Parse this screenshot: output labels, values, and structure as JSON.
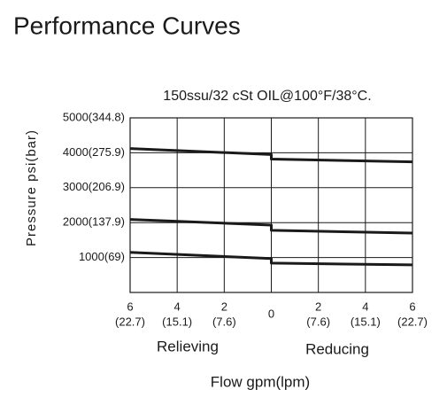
{
  "chart_data": {
    "type": "line",
    "title": "Performance Curves",
    "subtitle": "150ssu/32 cSt OIL@100°F/38°C.",
    "y_label": "Pressure psi(bar)",
    "x_label": "Flow gpm(lpm)",
    "annotations": [
      "Relieving",
      "Reducing"
    ],
    "xlim": [
      -6,
      6
    ],
    "ylim": [
      0,
      5000
    ],
    "xticks": [
      {
        "value": -6,
        "label": "6",
        "label_2": "(22.7)"
      },
      {
        "value": -4,
        "label": "4",
        "label_2": "(15.1)"
      },
      {
        "value": -2,
        "label": "2",
        "label_2": "(7.6)"
      },
      0,
      {
        "value": 2,
        "label": "2",
        "label_2": "(7.6)"
      },
      {
        "value": 4,
        "label": "4",
        "label_2": "(15.1)"
      },
      {
        "value": 6,
        "label": "6",
        "label_2": "(22.7)"
      }
    ],
    "yticks": [
      {
        "value": 1000,
        "label": "1000(69)"
      },
      {
        "value": 2000,
        "label": "2000(137.9)"
      },
      {
        "value": 3000,
        "label": "3000(206.9)"
      },
      {
        "value": 4000,
        "label": "4000(275.9)"
      },
      {
        "value": 5000,
        "label": "5000(344.8)"
      }
    ],
    "grid": true,
    "series": [
      {
        "color": "#1a1a1a",
        "x": [
          -6,
          0,
          0,
          6
        ],
        "values": [
          4120,
          3950,
          3820,
          3740
        ]
      },
      {
        "color": "#1a1a1a",
        "x": [
          -6,
          0,
          0,
          6
        ],
        "values": [
          2090,
          1930,
          1780,
          1700
        ]
      },
      {
        "color": "#1a1a1a",
        "x": [
          -6,
          0,
          0,
          6
        ],
        "values": [
          1150,
          970,
          840,
          790
        ]
      }
    ]
  }
}
